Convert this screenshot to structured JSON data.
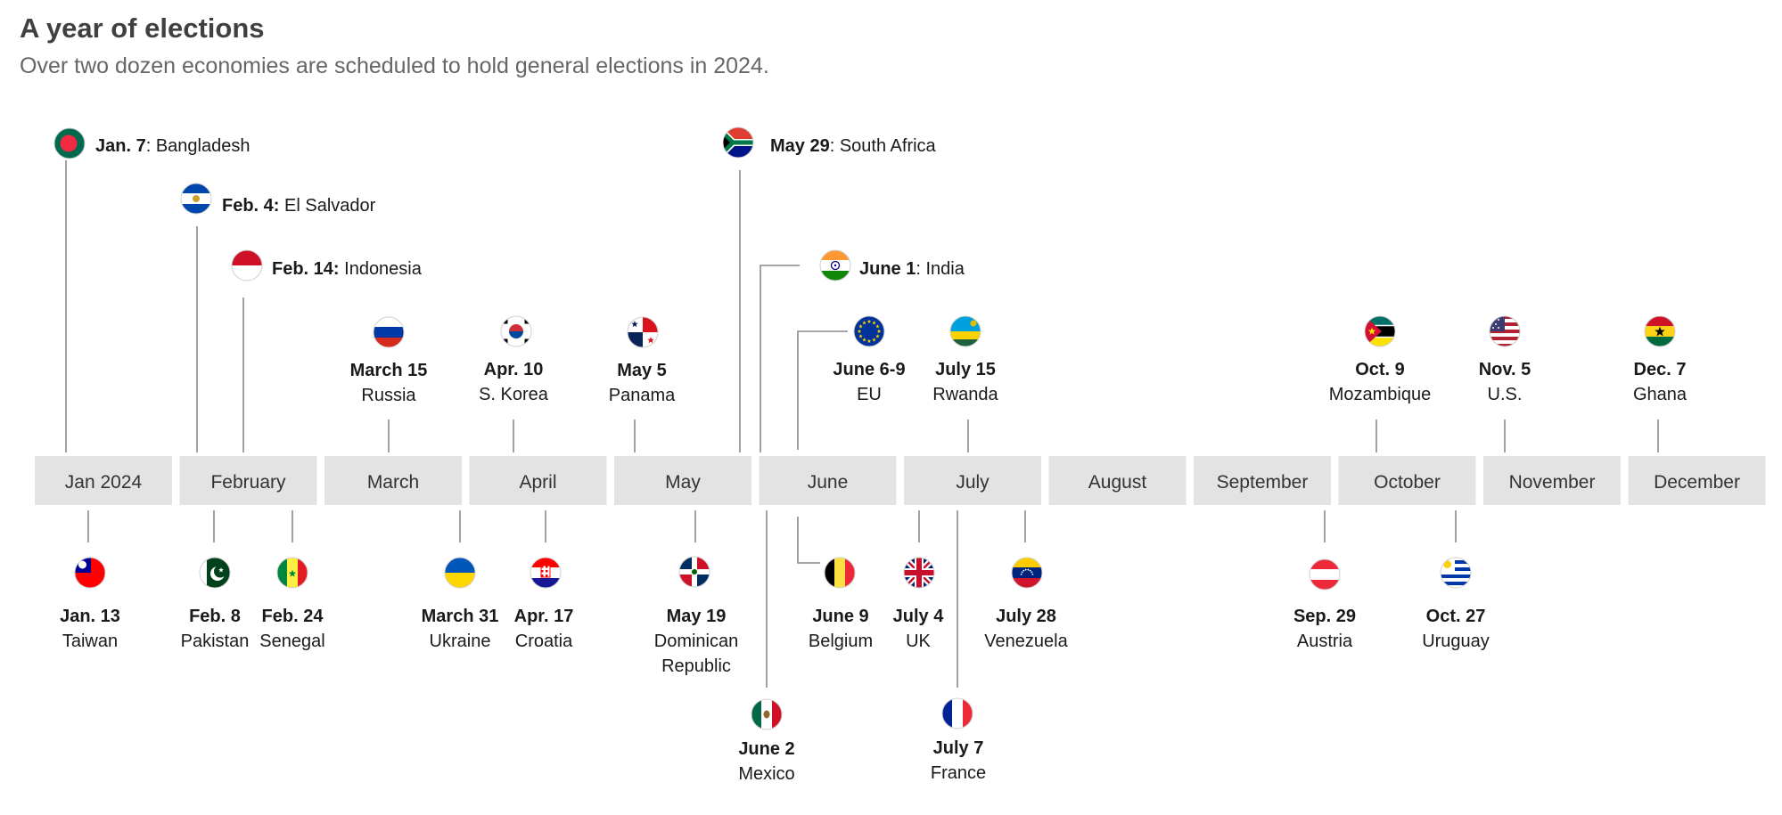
{
  "title": "A year of elections",
  "subtitle": "Over two dozen economies are scheduled to hold general elections in 2024.",
  "months": [
    "Jan 2024",
    "February",
    "March",
    "April",
    "May",
    "June",
    "July",
    "August",
    "September",
    "October",
    "November",
    "December"
  ],
  "elections": [
    {
      "date": "Jan. 7",
      "country": "Bangladesh",
      "flag": "bangladesh-flag-icon"
    },
    {
      "date": "Jan. 13",
      "country": "Taiwan",
      "flag": "taiwan-flag-icon"
    },
    {
      "date": "Feb. 4:",
      "country": "El Salvador",
      "flag": "el-salvador-flag-icon"
    },
    {
      "date": "Feb. 8",
      "country": "Pakistan",
      "flag": "pakistan-flag-icon"
    },
    {
      "date": "Feb. 14:",
      "country": "Indonesia",
      "flag": "indonesia-flag-icon"
    },
    {
      "date": "Feb. 24",
      "country": "Senegal",
      "flag": "senegal-flag-icon"
    },
    {
      "date": "March 15",
      "country": "Russia",
      "flag": "russia-flag-icon"
    },
    {
      "date": "March 31",
      "country": "Ukraine",
      "flag": "ukraine-flag-icon"
    },
    {
      "date": "Apr. 10",
      "country": "S. Korea",
      "flag": "south-korea-flag-icon"
    },
    {
      "date": "Apr. 17",
      "country": "Croatia",
      "flag": "croatia-flag-icon"
    },
    {
      "date": "May 5",
      "country": "Panama",
      "flag": "panama-flag-icon"
    },
    {
      "date": "May 19",
      "country": "Dominican Republic",
      "flag": "dominican-republic-flag-icon"
    },
    {
      "date": "May 29",
      "country": "South Africa",
      "flag": "south-africa-flag-icon"
    },
    {
      "date": "June 1",
      "country": "India",
      "flag": "india-flag-icon"
    },
    {
      "date": "June 2",
      "country": "Mexico",
      "flag": "mexico-flag-icon"
    },
    {
      "date": "June 6-9",
      "country": "EU",
      "flag": "eu-flag-icon"
    },
    {
      "date": "June 9",
      "country": "Belgium",
      "flag": "belgium-flag-icon"
    },
    {
      "date": "July 4",
      "country": "UK",
      "flag": "uk-flag-icon"
    },
    {
      "date": "July 7",
      "country": "France",
      "flag": "france-flag-icon"
    },
    {
      "date": "July 15",
      "country": "Rwanda",
      "flag": "rwanda-flag-icon"
    },
    {
      "date": "July 28",
      "country": "Venezuela",
      "flag": "venezuela-flag-icon"
    },
    {
      "date": "Sep. 29",
      "country": "Austria",
      "flag": "austria-flag-icon"
    },
    {
      "date": "Oct. 9",
      "country": "Mozambique",
      "flag": "mozambique-flag-icon"
    },
    {
      "date": "Oct. 27",
      "country": "Uruguay",
      "flag": "uruguay-flag-icon"
    },
    {
      "date": "Nov. 5",
      "country": "U.S.",
      "flag": "us-flag-icon"
    },
    {
      "date": "Dec. 7",
      "country": "Ghana",
      "flag": "ghana-flag-icon"
    }
  ],
  "colors": {
    "month_band": "#e3e3e3",
    "leader_line": "#8a8a8a",
    "title": "#404040",
    "subtitle": "#666666"
  }
}
